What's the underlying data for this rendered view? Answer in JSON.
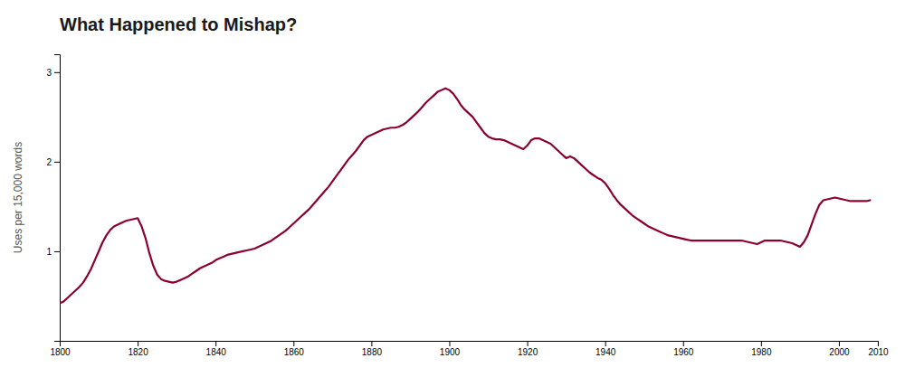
{
  "chart_data": {
    "type": "line",
    "title": "What Happened to Mishap?",
    "y_label": "Uses per 15,000 words",
    "color": "#8B0030",
    "grid": false,
    "xlim": [
      1800,
      2010
    ],
    "ylim": [
      0,
      3.2
    ],
    "yticks": [
      1,
      2,
      3
    ],
    "xticks": [
      1800,
      1820,
      1840,
      1860,
      1880,
      1900,
      1920,
      1940,
      1960,
      1980,
      2000,
      2010
    ],
    "x": [
      1800,
      1801,
      1802,
      1803,
      1804,
      1805,
      1806,
      1807,
      1808,
      1809,
      1810,
      1811,
      1812,
      1813,
      1814,
      1815,
      1816,
      1817,
      1818,
      1819,
      1820,
      1821,
      1822,
      1823,
      1824,
      1825,
      1826,
      1827,
      1828,
      1829,
      1830,
      1831,
      1832,
      1833,
      1834,
      1835,
      1836,
      1837,
      1838,
      1839,
      1840,
      1841,
      1842,
      1843,
      1844,
      1845,
      1846,
      1847,
      1848,
      1849,
      1850,
      1851,
      1852,
      1853,
      1854,
      1855,
      1856,
      1857,
      1858,
      1859,
      1860,
      1861,
      1862,
      1863,
      1864,
      1865,
      1866,
      1867,
      1868,
      1869,
      1870,
      1871,
      1872,
      1873,
      1874,
      1875,
      1876,
      1877,
      1878,
      1879,
      1880,
      1881,
      1882,
      1883,
      1884,
      1885,
      1886,
      1887,
      1888,
      1889,
      1890,
      1891,
      1892,
      1893,
      1894,
      1895,
      1896,
      1897,
      1898,
      1899,
      1900,
      1901,
      1902,
      1903,
      1904,
      1905,
      1906,
      1907,
      1908,
      1909,
      1910,
      1911,
      1912,
      1913,
      1914,
      1915,
      1916,
      1917,
      1918,
      1919,
      1920,
      1921,
      1922,
      1923,
      1924,
      1925,
      1926,
      1927,
      1928,
      1929,
      1930,
      1931,
      1932,
      1933,
      1934,
      1935,
      1936,
      1937,
      1938,
      1939,
      1940,
      1941,
      1942,
      1943,
      1944,
      1945,
      1946,
      1947,
      1948,
      1949,
      1950,
      1951,
      1952,
      1953,
      1954,
      1955,
      1956,
      1957,
      1958,
      1959,
      1960,
      1961,
      1962,
      1963,
      1964,
      1965,
      1966,
      1967,
      1968,
      1969,
      1970,
      1971,
      1972,
      1973,
      1974,
      1975,
      1976,
      1977,
      1978,
      1979,
      1980,
      1981,
      1982,
      1983,
      1984,
      1985,
      1986,
      1987,
      1988,
      1989,
      1990,
      1991,
      1992,
      1993,
      1994,
      1995,
      1996,
      1997,
      1998,
      1999,
      2000,
      2001,
      2002,
      2003,
      2004,
      2005,
      2006,
      2007,
      2008
    ],
    "values": [
      0.42,
      0.44,
      0.48,
      0.52,
      0.56,
      0.6,
      0.65,
      0.72,
      0.8,
      0.9,
      1.0,
      1.1,
      1.18,
      1.24,
      1.28,
      1.3,
      1.32,
      1.34,
      1.35,
      1.36,
      1.37,
      1.28,
      1.15,
      0.98,
      0.84,
      0.74,
      0.69,
      0.67,
      0.66,
      0.65,
      0.66,
      0.68,
      0.7,
      0.72,
      0.75,
      0.78,
      0.81,
      0.83,
      0.85,
      0.87,
      0.9,
      0.92,
      0.94,
      0.96,
      0.97,
      0.98,
      0.99,
      1.0,
      1.01,
      1.02,
      1.03,
      1.05,
      1.07,
      1.09,
      1.11,
      1.14,
      1.17,
      1.2,
      1.23,
      1.27,
      1.31,
      1.35,
      1.39,
      1.43,
      1.47,
      1.52,
      1.57,
      1.62,
      1.67,
      1.72,
      1.78,
      1.84,
      1.9,
      1.96,
      2.02,
      2.07,
      2.12,
      2.18,
      2.24,
      2.28,
      2.3,
      2.32,
      2.34,
      2.36,
      2.37,
      2.38,
      2.38,
      2.39,
      2.41,
      2.44,
      2.48,
      2.52,
      2.56,
      2.61,
      2.66,
      2.7,
      2.74,
      2.78,
      2.8,
      2.82,
      2.8,
      2.76,
      2.7,
      2.63,
      2.58,
      2.54,
      2.5,
      2.44,
      2.38,
      2.32,
      2.28,
      2.26,
      2.25,
      2.25,
      2.24,
      2.22,
      2.2,
      2.18,
      2.16,
      2.14,
      2.18,
      2.24,
      2.26,
      2.26,
      2.24,
      2.22,
      2.2,
      2.16,
      2.12,
      2.08,
      2.04,
      2.06,
      2.04,
      2.0,
      1.96,
      1.92,
      1.88,
      1.85,
      1.82,
      1.8,
      1.76,
      1.7,
      1.63,
      1.57,
      1.52,
      1.48,
      1.44,
      1.4,
      1.37,
      1.34,
      1.31,
      1.28,
      1.26,
      1.24,
      1.22,
      1.2,
      1.18,
      1.17,
      1.16,
      1.15,
      1.14,
      1.13,
      1.12,
      1.12,
      1.12,
      1.12,
      1.12,
      1.12,
      1.12,
      1.12,
      1.12,
      1.12,
      1.12,
      1.12,
      1.12,
      1.12,
      1.11,
      1.1,
      1.09,
      1.08,
      1.1,
      1.12,
      1.12,
      1.12,
      1.12,
      1.12,
      1.11,
      1.1,
      1.09,
      1.07,
      1.05,
      1.1,
      1.18,
      1.3,
      1.42,
      1.52,
      1.57,
      1.58,
      1.59,
      1.6,
      1.59,
      1.58,
      1.57,
      1.56,
      1.56,
      1.56,
      1.56,
      1.56,
      1.57
    ]
  }
}
